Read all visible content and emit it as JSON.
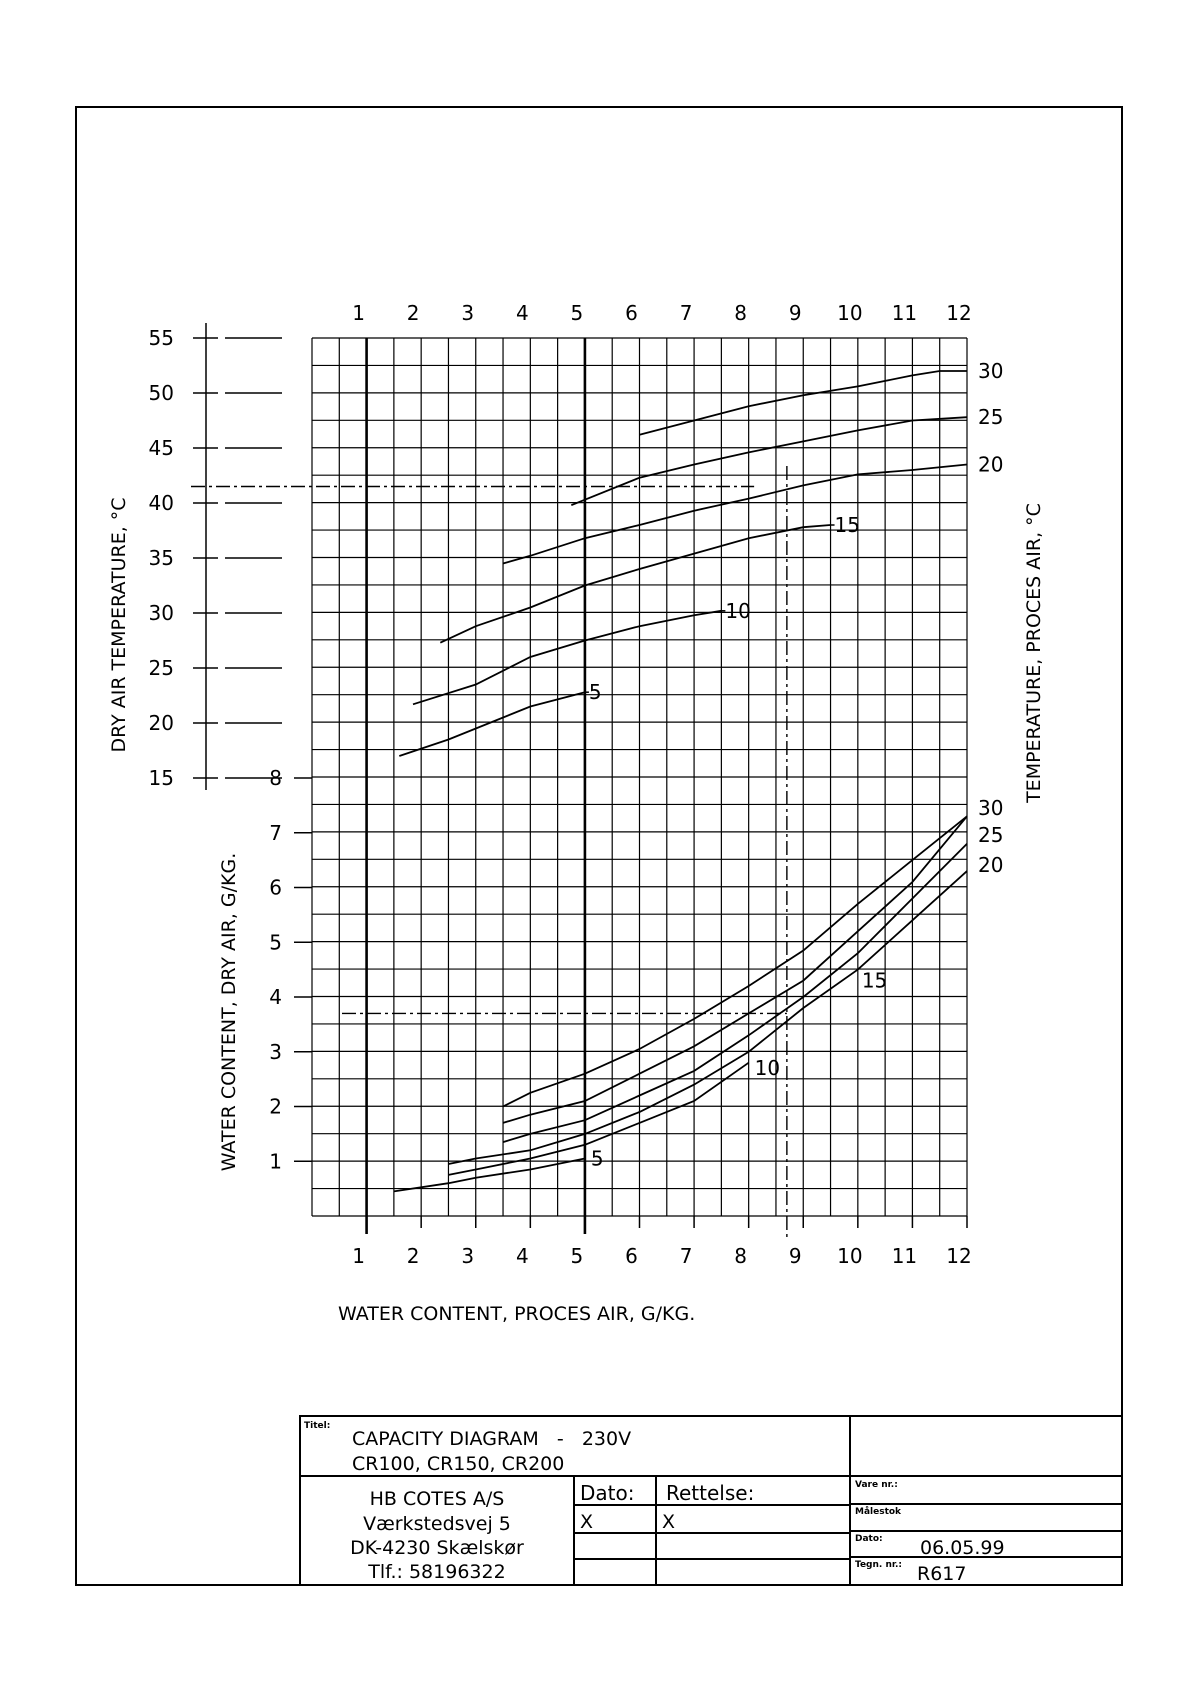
{
  "chart_data": {
    "type": "line",
    "x_ticks": [
      "1",
      "2",
      "3",
      "4",
      "5",
      "6",
      "7",
      "8",
      "9",
      "10",
      "11",
      "12"
    ],
    "x_range": [
      0,
      12
    ],
    "xlabel": "WATER CONTENT, PROCES AIR, G/KG.",
    "upper": {
      "ylabel": "DRY AIR TEMPERATURE, °C",
      "right_label": "TEMPERATURE, PROCES AIR, °C",
      "y_ticks": [
        "15",
        "20",
        "25",
        "30",
        "35",
        "40",
        "45",
        "50",
        "55"
      ],
      "y_range": [
        15,
        55
      ],
      "series": [
        {
          "name": "5",
          "points": [
            [
              1.6,
              17
            ],
            [
              2.5,
              18.5
            ],
            [
              3,
              19.5
            ],
            [
              4,
              21.5
            ],
            [
              5,
              22.8
            ]
          ]
        },
        {
          "name": "10",
          "points": [
            [
              1.85,
              21.7
            ],
            [
              3,
              23.5
            ],
            [
              4,
              26
            ],
            [
              5,
              27.5
            ],
            [
              6,
              28.8
            ],
            [
              7,
              29.8
            ],
            [
              7.5,
              30.2
            ]
          ]
        },
        {
          "name": "15",
          "points": [
            [
              2.35,
              27.3
            ],
            [
              3,
              28.8
            ],
            [
              4,
              30.5
            ],
            [
              5,
              32.5
            ],
            [
              6,
              34
            ],
            [
              7,
              35.4
            ],
            [
              8,
              36.8
            ],
            [
              9,
              37.8
            ],
            [
              9.5,
              38
            ]
          ]
        },
        {
          "name": "20",
          "points": [
            [
              3.5,
              34.5
            ],
            [
              4,
              35.2
            ],
            [
              5,
              36.8
            ],
            [
              6,
              38
            ],
            [
              7,
              39.3
            ],
            [
              8,
              40.4
            ],
            [
              9,
              41.6
            ],
            [
              10,
              42.6
            ],
            [
              11,
              43
            ],
            [
              12,
              43.5
            ]
          ]
        },
        {
          "name": "25",
          "points": [
            [
              4.75,
              39.8
            ],
            [
              6,
              42.3
            ],
            [
              7,
              43.5
            ],
            [
              8,
              44.6
            ],
            [
              9,
              45.6
            ],
            [
              10,
              46.6
            ],
            [
              11,
              47.5
            ],
            [
              12,
              47.8
            ]
          ]
        },
        {
          "name": "30",
          "points": [
            [
              6,
              46.2
            ],
            [
              7,
              47.5
            ],
            [
              8,
              48.8
            ],
            [
              9,
              49.8
            ],
            [
              10,
              50.6
            ],
            [
              11,
              51.6
            ],
            [
              11.5,
              52
            ],
            [
              12,
              52
            ]
          ]
        }
      ],
      "example_line_y": 41.5
    },
    "lower": {
      "ylabel": "WATER CONTENT, DRY AIR, G/KG.",
      "y_ticks": [
        "1",
        "2",
        "3",
        "4",
        "5",
        "6",
        "7",
        "8"
      ],
      "y_range": [
        0,
        8
      ],
      "series": [
        {
          "name": "5",
          "points": [
            [
              1.5,
              0.45
            ],
            [
              2.5,
              0.6
            ],
            [
              3,
              0.7
            ],
            [
              4,
              0.85
            ],
            [
              5,
              1.05
            ]
          ]
        },
        {
          "name": "10",
          "points": [
            [
              2.5,
              0.75
            ],
            [
              3,
              0.85
            ],
            [
              4,
              1.05
            ],
            [
              5,
              1.3
            ],
            [
              6,
              1.7
            ],
            [
              7,
              2.1
            ],
            [
              8,
              2.8
            ]
          ]
        },
        {
          "name": "15",
          "points": [
            [
              2.5,
              0.95
            ],
            [
              3,
              1.05
            ],
            [
              4,
              1.2
            ],
            [
              5,
              1.5
            ],
            [
              6,
              1.9
            ],
            [
              7,
              2.4
            ],
            [
              8,
              3
            ],
            [
              9,
              3.8
            ],
            [
              10,
              4.5
            ],
            [
              11,
              5.4
            ],
            [
              12,
              6.3
            ]
          ]
        },
        {
          "name": "20",
          "points": [
            [
              3.5,
              1.35
            ],
            [
              4,
              1.5
            ],
            [
              5,
              1.75
            ],
            [
              6,
              2.2
            ],
            [
              7,
              2.65
            ],
            [
              8,
              3.3
            ],
            [
              9,
              4
            ],
            [
              10,
              4.8
            ],
            [
              11,
              5.8
            ],
            [
              12,
              6.8
            ]
          ]
        },
        {
          "name": "25",
          "points": [
            [
              3.5,
              1.7
            ],
            [
              4,
              1.85
            ],
            [
              5,
              2.1
            ],
            [
              6,
              2.6
            ],
            [
              7,
              3.1
            ],
            [
              8,
              3.7
            ],
            [
              9,
              4.3
            ],
            [
              10,
              5.2
            ],
            [
              11,
              6.1
            ],
            [
              12,
              7.3
            ]
          ]
        },
        {
          "name": "30",
          "points": [
            [
              3.5,
              2
            ],
            [
              4,
              2.25
            ],
            [
              5,
              2.6
            ],
            [
              6,
              3.05
            ],
            [
              7,
              3.6
            ],
            [
              8,
              4.2
            ],
            [
              9,
              4.85
            ],
            [
              10,
              5.7
            ],
            [
              11,
              6.5
            ],
            [
              12,
              7.3
            ]
          ]
        }
      ],
      "example_line_y": 3.7
    },
    "example_line_x": 8.7
  },
  "title_block": {
    "titel_label": "Titel:",
    "title_line1": "CAPACITY DIAGRAM   -   230V",
    "title_line2": "CR100, CR150, CR200",
    "company": [
      "HB COTES A/S",
      "Værkstedsvej 5",
      "DK-4230 Skælskør",
      "Tlf.: 58196322"
    ],
    "dato_label": "Dato:",
    "rettelse_label": "Rettelse:",
    "dato_value": "X",
    "rettelse_value": "X",
    "vare_nr_label": "Vare nr.:",
    "malestok_label": "Målestok",
    "dato2_label": "Dato:",
    "dato2_value": "06.05.99",
    "tegn_nr_label": "Tegn. nr.:",
    "tegn_nr_value": "R617"
  }
}
